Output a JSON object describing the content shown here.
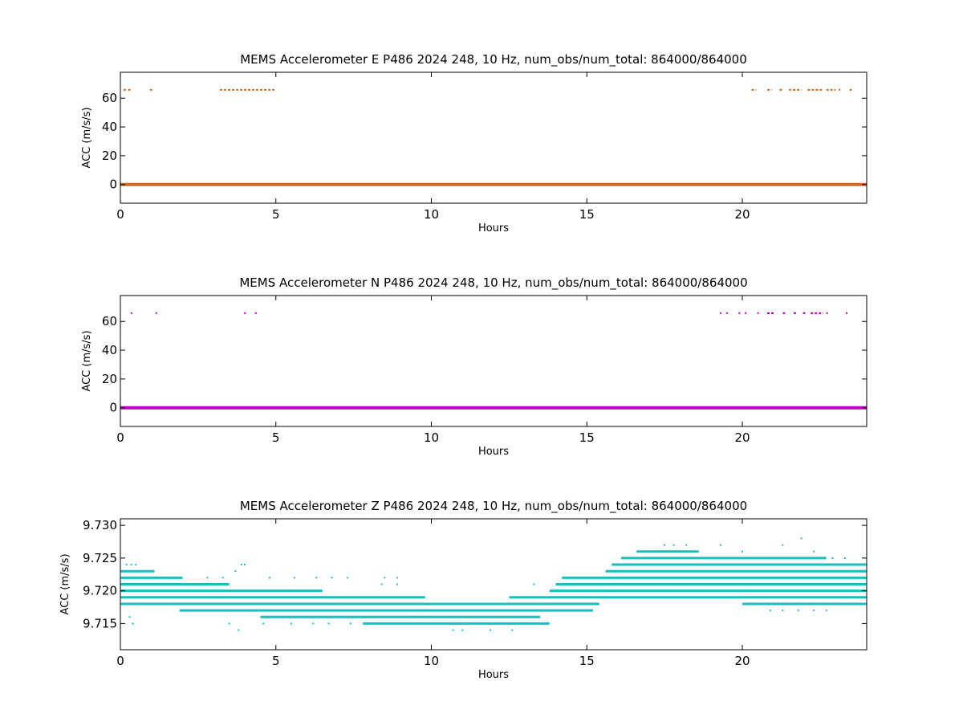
{
  "chart_data": [
    {
      "type": "scatter",
      "title": "MEMS Accelerometer E P486 2024 248, 10 Hz, num_obs/num_total: 864000/864000",
      "xlabel": "Hours",
      "ylabel": "ACC (m/s/s)",
      "xlim": [
        0,
        24
      ],
      "ylim": [
        -13,
        78
      ],
      "xticks": [
        "0",
        "5",
        "10",
        "15",
        "20"
      ],
      "xtick_values": [
        0,
        5,
        10,
        15,
        20
      ],
      "yticks": [
        "0",
        "20",
        "40",
        "60"
      ],
      "ytick_values": [
        0,
        20,
        40,
        60
      ],
      "grid": false,
      "color": "#d2691e",
      "baseline": {
        "y": 0,
        "x_range": [
          0,
          24
        ]
      },
      "outlier_y": 65.8,
      "outlier_segments": [
        [
          0.1,
          0.2
        ],
        [
          0.25,
          0.35
        ],
        [
          0.95,
          1.05
        ],
        [
          3.2,
          5.0
        ],
        [
          20.3,
          20.45
        ],
        [
          20.8,
          20.95
        ],
        [
          21.2,
          21.3
        ],
        [
          21.5,
          21.9
        ],
        [
          22.1,
          22.6
        ],
        [
          22.7,
          23.0
        ],
        [
          23.1,
          23.15
        ],
        [
          23.45,
          23.55
        ]
      ]
    },
    {
      "type": "scatter",
      "title": "MEMS Accelerometer N P486 2024 248, 10 Hz, num_obs/num_total: 864000/864000",
      "xlabel": "Hours",
      "ylabel": "ACC (m/s/s)",
      "xlim": [
        0,
        24
      ],
      "ylim": [
        -13,
        78
      ],
      "xticks": [
        "0",
        "5",
        "10",
        "15",
        "20"
      ],
      "xtick_values": [
        0,
        5,
        10,
        15,
        20
      ],
      "yticks": [
        "0",
        "20",
        "40",
        "60"
      ],
      "ytick_values": [
        0,
        20,
        40,
        60
      ],
      "grid": false,
      "color": "#bf00bf",
      "baseline": {
        "y": 0,
        "x_range": [
          0,
          24
        ]
      },
      "outlier_y": 65.8,
      "outlier_segments": [
        [
          0.33,
          0.37
        ],
        [
          1.13,
          1.17
        ],
        [
          3.98,
          4.02
        ],
        [
          4.33,
          4.37
        ],
        [
          19.28,
          19.32
        ],
        [
          19.48,
          19.52
        ],
        [
          19.88,
          19.92
        ],
        [
          20.08,
          20.12
        ],
        [
          20.48,
          20.52
        ],
        [
          20.8,
          21.05
        ],
        [
          21.3,
          21.4
        ],
        [
          21.65,
          21.75
        ],
        [
          21.95,
          22.05
        ],
        [
          22.2,
          22.6
        ],
        [
          22.7,
          22.75
        ],
        [
          23.33,
          23.37
        ]
      ]
    },
    {
      "type": "scatter",
      "title": "MEMS Accelerometer Z P486 2024 248, 10 Hz, num_obs/num_total: 864000/864000",
      "xlabel": "Hours",
      "ylabel": "ACC (m/s/s)",
      "xlim": [
        0,
        24
      ],
      "ylim": [
        9.711,
        9.731
      ],
      "xticks": [
        "0",
        "5",
        "10",
        "15",
        "20"
      ],
      "xtick_values": [
        0,
        5,
        10,
        15,
        20
      ],
      "yticks": [
        "9.715",
        "9.720",
        "9.725",
        "9.730"
      ],
      "ytick_values": [
        9.715,
        9.72,
        9.725,
        9.73
      ],
      "grid": false,
      "color": "#17bfbf",
      "bands": [
        {
          "y": 9.723,
          "segments": [
            [
              0,
              1.1
            ],
            [
              15.6,
              24
            ]
          ]
        },
        {
          "y": 9.722,
          "segments": [
            [
              0,
              2.0
            ],
            [
              14.2,
              24
            ]
          ]
        },
        {
          "y": 9.721,
          "segments": [
            [
              0,
              3.5
            ],
            [
              14.0,
              24
            ]
          ]
        },
        {
          "y": 9.72,
          "segments": [
            [
              0,
              6.5
            ],
            [
              13.8,
              24
            ]
          ]
        },
        {
          "y": 9.719,
          "segments": [
            [
              0,
              9.8
            ],
            [
              12.5,
              24
            ]
          ]
        },
        {
          "y": 9.718,
          "segments": [
            [
              0,
              15.4
            ],
            [
              20.0,
              24
            ]
          ]
        },
        {
          "y": 9.717,
          "segments": [
            [
              1.9,
              15.2
            ]
          ]
        },
        {
          "y": 9.716,
          "segments": [
            [
              4.5,
              13.5
            ]
          ]
        },
        {
          "y": 9.715,
          "segments": [
            [
              7.8,
              13.8
            ]
          ]
        },
        {
          "y": 9.724,
          "segments": [
            [
              15.8,
              24
            ]
          ]
        },
        {
          "y": 9.725,
          "segments": [
            [
              16.1,
              22.7
            ]
          ]
        },
        {
          "y": 9.726,
          "segments": [
            [
              16.6,
              18.6
            ]
          ]
        }
      ],
      "scatter_points": [
        [
          0.2,
          9.724
        ],
        [
          0.35,
          9.724
        ],
        [
          0.5,
          9.724
        ],
        [
          3.7,
          9.723
        ],
        [
          3.9,
          9.724
        ],
        [
          4.0,
          9.724
        ],
        [
          2.8,
          9.722
        ],
        [
          3.3,
          9.722
        ],
        [
          4.8,
          9.722
        ],
        [
          5.6,
          9.722
        ],
        [
          6.3,
          9.722
        ],
        [
          6.8,
          9.722
        ],
        [
          7.3,
          9.722
        ],
        [
          8.5,
          9.722
        ],
        [
          8.9,
          9.722
        ],
        [
          0.3,
          9.716
        ],
        [
          0.4,
          9.715
        ],
        [
          3.5,
          9.715
        ],
        [
          3.8,
          9.714
        ],
        [
          4.6,
          9.715
        ],
        [
          5.5,
          9.715
        ],
        [
          6.2,
          9.715
        ],
        [
          6.7,
          9.715
        ],
        [
          7.4,
          9.715
        ],
        [
          10.7,
          9.714
        ],
        [
          11.0,
          9.714
        ],
        [
          11.9,
          9.714
        ],
        [
          12.6,
          9.714
        ],
        [
          13.0,
          9.715
        ],
        [
          8.4,
          9.721
        ],
        [
          8.9,
          9.721
        ],
        [
          9.5,
          9.716
        ],
        [
          9.8,
          9.717
        ],
        [
          13.3,
          9.721
        ],
        [
          14.8,
          9.719
        ],
        [
          15.5,
          9.719
        ],
        [
          15.6,
          9.721
        ],
        [
          15.8,
          9.72
        ],
        [
          17.0,
          9.721
        ],
        [
          17.5,
          9.72
        ],
        [
          18.0,
          9.72
        ],
        [
          18.6,
          9.72
        ],
        [
          17.5,
          9.727
        ],
        [
          17.8,
          9.727
        ],
        [
          18.2,
          9.727
        ],
        [
          18.0,
          9.726
        ],
        [
          19.3,
          9.727
        ],
        [
          20.0,
          9.726
        ],
        [
          21.3,
          9.727
        ],
        [
          21.9,
          9.728
        ],
        [
          22.3,
          9.726
        ],
        [
          22.9,
          9.725
        ],
        [
          23.3,
          9.725
        ],
        [
          19.8,
          9.72
        ],
        [
          20.2,
          9.72
        ],
        [
          20.5,
          9.719
        ],
        [
          20.9,
          9.717
        ],
        [
          21.3,
          9.717
        ],
        [
          21.8,
          9.717
        ],
        [
          22.3,
          9.717
        ],
        [
          22.7,
          9.717
        ],
        [
          23.2,
          9.719
        ],
        [
          23.6,
          9.719
        ]
      ]
    }
  ]
}
